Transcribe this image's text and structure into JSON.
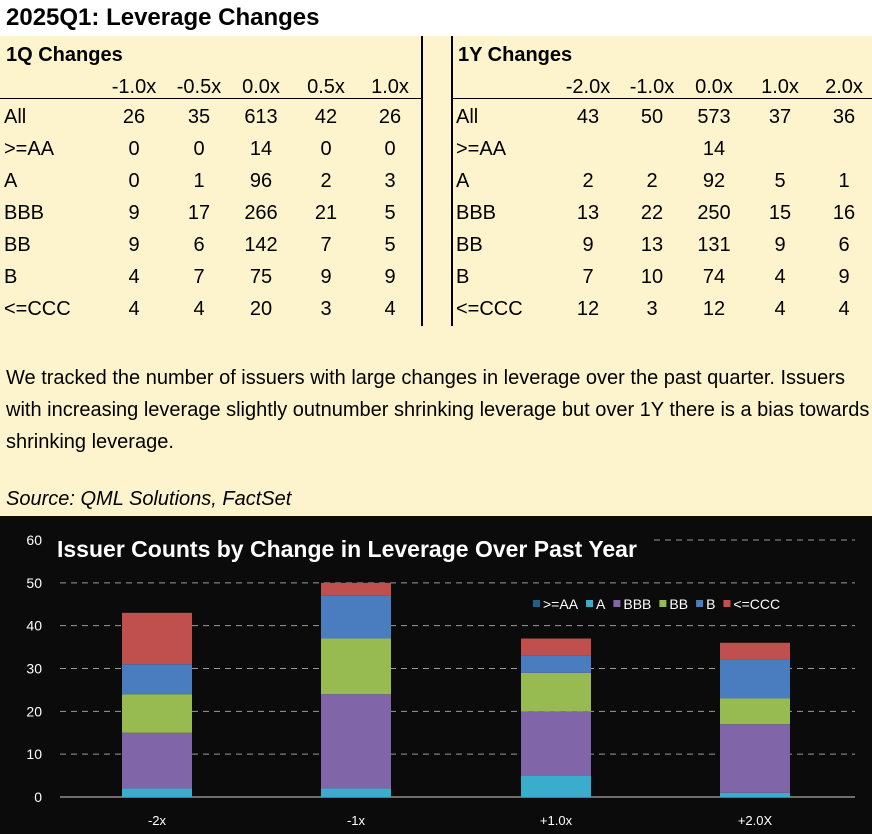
{
  "title": "2025Q1: Leverage Changes",
  "rating_labels": [
    "All",
    ">=AA",
    "A",
    "BBB",
    "BB",
    "B",
    "<=CCC"
  ],
  "table_1q": {
    "heading": "1Q Changes",
    "columns": [
      "-1.0x",
      "-0.5x",
      "0.0x",
      "0.5x",
      "1.0x"
    ],
    "rows": [
      [
        "26",
        "35",
        "613",
        "42",
        "26"
      ],
      [
        "0",
        "0",
        "14",
        "0",
        "0"
      ],
      [
        "0",
        "1",
        "96",
        "2",
        "3"
      ],
      [
        "9",
        "17",
        "266",
        "21",
        "5"
      ],
      [
        "9",
        "6",
        "142",
        "7",
        "5"
      ],
      [
        "4",
        "7",
        "75",
        "9",
        "9"
      ],
      [
        "4",
        "4",
        "20",
        "3",
        "4"
      ]
    ]
  },
  "table_1y": {
    "heading": "1Y Changes",
    "columns": [
      "-2.0x",
      "-1.0x",
      "0.0x",
      "1.0x",
      "2.0x"
    ],
    "rows": [
      [
        "43",
        "50",
        "573",
        "37",
        "36"
      ],
      [
        "",
        "",
        "14",
        "",
        ""
      ],
      [
        "2",
        "2",
        "92",
        "5",
        "1"
      ],
      [
        "13",
        "22",
        "250",
        "15",
        "16"
      ],
      [
        "9",
        "13",
        "131",
        "9",
        "6"
      ],
      [
        "7",
        "10",
        "74",
        "4",
        "9"
      ],
      [
        "12",
        "3",
        "12",
        "4",
        "4"
      ]
    ]
  },
  "note": "We tracked the number of issuers with large changes in leverage over the past quarter. Issuers with increasing leverage slightly outnumber shrinking leverage but over 1Y there is a bias towards shrinking leverage.",
  "source": "Source: QML Solutions, FactSet",
  "chart_data": {
    "type": "bar",
    "stacked": true,
    "title": "Issuer Counts by Change in Leverage Over Past Year",
    "categories": [
      "-2x",
      "-1x",
      "+1.0x",
      "+2.0X"
    ],
    "ylim": [
      0,
      60
    ],
    "yticks": [
      0,
      10,
      20,
      30,
      40,
      50,
      60
    ],
    "grid": true,
    "legend_position": "top-right",
    "series": [
      {
        "name": ">=AA",
        "color": "#1f5f8b",
        "values": [
          0,
          0,
          0,
          0
        ]
      },
      {
        "name": "A",
        "color": "#3aaccc",
        "values": [
          2,
          2,
          5,
          1
        ]
      },
      {
        "name": "BBB",
        "color": "#8066a8",
        "values": [
          13,
          22,
          15,
          16
        ]
      },
      {
        "name": "BB",
        "color": "#97bb50",
        "values": [
          9,
          13,
          9,
          6
        ]
      },
      {
        "name": "B",
        "color": "#4a7cc0",
        "values": [
          7,
          10,
          4,
          9
        ]
      },
      {
        "name": "<=CCC",
        "color": "#c0504d",
        "values": [
          12,
          3,
          4,
          4
        ]
      }
    ]
  }
}
